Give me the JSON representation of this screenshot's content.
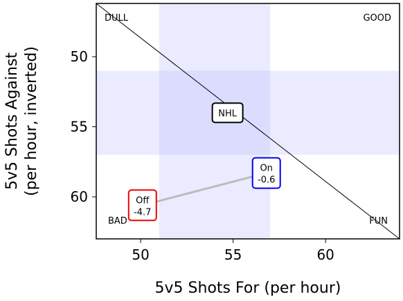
{
  "chart_data": {
    "type": "scatter",
    "xlabel": "5v5 Shots For (per hour)",
    "ylabel_lines": [
      "5v5 Shots Against",
      "(per hour, inverted)"
    ],
    "xlim": [
      47.6,
      64.0
    ],
    "ylim": [
      46.2,
      63.0
    ],
    "y_inverted": true,
    "xticks": [
      50,
      55,
      60
    ],
    "yticks": [
      50,
      55,
      60
    ],
    "corner_labels": {
      "top_left": "DULL",
      "top_right": "GOOD",
      "bottom_left": "BAD",
      "bottom_right": "FUN"
    },
    "league_band": {
      "x": [
        51.0,
        57.0
      ],
      "y": [
        51.0,
        57.0
      ],
      "color": "#b0b0ff"
    },
    "diagonal": {
      "x": [
        47.6,
        64.0
      ],
      "y": [
        46.2,
        63.0
      ]
    },
    "points": [
      {
        "label": "NHL",
        "x": 54.7,
        "y": 54.0,
        "color": "#000000"
      },
      {
        "label": "On",
        "sublabel": "-0.6",
        "x": 56.8,
        "y": 58.3,
        "color": "#0000ee"
      },
      {
        "label": "Off",
        "sublabel": "-4.7",
        "x": 50.1,
        "y": 60.6,
        "color": "#ee0000"
      }
    ],
    "connector_color": "#bbbbbb",
    "grid": false,
    "legend": "none"
  }
}
